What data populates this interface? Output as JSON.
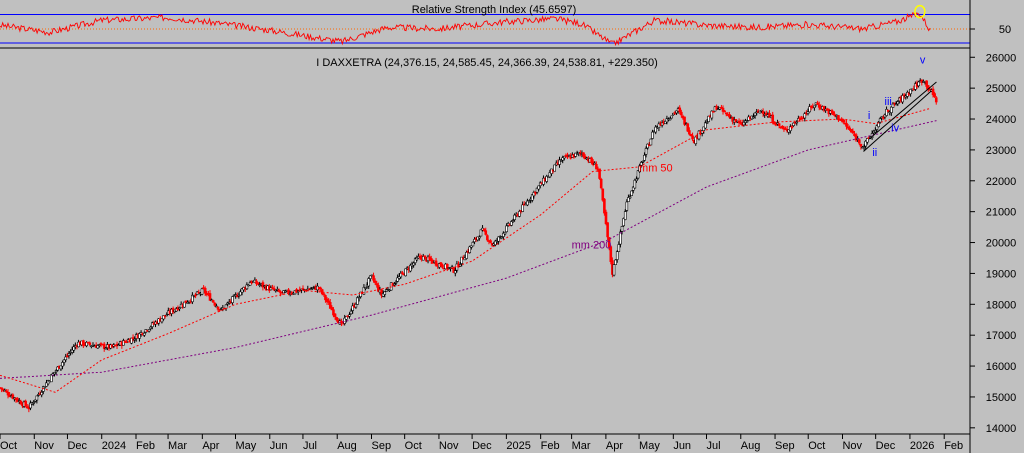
{
  "chart_data": [
    {
      "type": "line",
      "title": "Relative Strength Index (45.6597)",
      "y_ticks": [
        50
      ],
      "reference_lines": [
        30,
        50,
        70
      ],
      "ylim": [
        20,
        80
      ],
      "series": [
        {
          "name": "",
          "color": "#ff0000"
        }
      ],
      "x": [
        "2023-10-01",
        "2023-11-15",
        "2024-01-01",
        "2024-03-01",
        "2024-04-15",
        "2024-06-01",
        "2024-08-05",
        "2024-09-15",
        "2024-11-01",
        "2025-01-01",
        "2025-02-15",
        "2025-03-10",
        "2025-04-07",
        "2025-05-15",
        "2025-07-01",
        "2025-08-15",
        "2025-10-01",
        "2025-11-20",
        "2025-12-20",
        "2026-01-10",
        "2026-01-20"
      ],
      "values": [
        55,
        45,
        62,
        66,
        58,
        48,
        32,
        52,
        50,
        60,
        64,
        57,
        28,
        62,
        55,
        52,
        56,
        50,
        60,
        72,
        46
      ],
      "annotations": [
        {
          "type": "circle",
          "x": "2026-01-10",
          "y": 74,
          "color": "#ffff00"
        }
      ]
    },
    {
      "type": "candlestick",
      "title": "I DAXXETRA (24,376.15, 24,585.45, 24,366.39, 24,538.81, +229.350)",
      "xlim": [
        "2023-10-01",
        "2026-02-18"
      ],
      "ylim": [
        13800,
        26300
      ],
      "y_ticks": [
        14000,
        15000,
        16000,
        17000,
        18000,
        19000,
        20000,
        21000,
        22000,
        23000,
        24000,
        25000,
        26000
      ],
      "x_tick_labels": [
        {
          "label": "Oct",
          "date": "2023-10-01"
        },
        {
          "label": "Nov",
          "date": "2023-11-01"
        },
        {
          "label": "Dec",
          "date": "2023-12-01"
        },
        {
          "label": "2024",
          "date": "2024-01-01"
        },
        {
          "label": "Feb",
          "date": "2024-02-01"
        },
        {
          "label": "Mar",
          "date": "2024-03-01"
        },
        {
          "label": "Apr",
          "date": "2024-04-01"
        },
        {
          "label": "May",
          "date": "2024-05-01"
        },
        {
          "label": "Jun",
          "date": "2024-06-01"
        },
        {
          "label": "Jul",
          "date": "2024-07-01"
        },
        {
          "label": "Aug",
          "date": "2024-08-01"
        },
        {
          "label": "Sep",
          "date": "2024-09-01"
        },
        {
          "label": "Oct",
          "date": "2024-10-01"
        },
        {
          "label": "Nov",
          "date": "2024-11-01"
        },
        {
          "label": "Dec",
          "date": "2024-12-01"
        },
        {
          "label": "2025",
          "date": "2025-01-01"
        },
        {
          "label": "Feb",
          "date": "2025-02-01"
        },
        {
          "label": "Mar",
          "date": "2025-03-01"
        },
        {
          "label": "Apr",
          "date": "2025-04-01"
        },
        {
          "label": "May",
          "date": "2025-05-01"
        },
        {
          "label": "Jun",
          "date": "2025-06-01"
        },
        {
          "label": "Jul",
          "date": "2025-07-01"
        },
        {
          "label": "Aug",
          "date": "2025-08-01"
        },
        {
          "label": "Sep",
          "date": "2025-09-01"
        },
        {
          "label": "Oct",
          "date": "2025-10-01"
        },
        {
          "label": "Nov",
          "date": "2025-11-01"
        },
        {
          "label": "Dec",
          "date": "2025-12-01"
        },
        {
          "label": "2026",
          "date": "2026-01-01"
        },
        {
          "label": "Feb",
          "date": "2026-02-01"
        }
      ],
      "price_path": [
        {
          "x": "2023-10-01",
          "y": 15300
        },
        {
          "x": "2023-10-27",
          "y": 14650
        },
        {
          "x": "2023-11-15",
          "y": 15600
        },
        {
          "x": "2023-12-10",
          "y": 16750
        },
        {
          "x": "2024-01-10",
          "y": 16600
        },
        {
          "x": "2024-02-01",
          "y": 16950
        },
        {
          "x": "2024-03-01",
          "y": 17700
        },
        {
          "x": "2024-04-02",
          "y": 18450
        },
        {
          "x": "2024-04-18",
          "y": 17800
        },
        {
          "x": "2024-05-15",
          "y": 18750
        },
        {
          "x": "2024-06-12",
          "y": 18350
        },
        {
          "x": "2024-07-15",
          "y": 18550
        },
        {
          "x": "2024-08-05",
          "y": 17300
        },
        {
          "x": "2024-09-01",
          "y": 18900
        },
        {
          "x": "2024-09-10",
          "y": 18300
        },
        {
          "x": "2024-10-15",
          "y": 19550
        },
        {
          "x": "2024-11-15",
          "y": 19100
        },
        {
          "x": "2024-12-10",
          "y": 20400
        },
        {
          "x": "2024-12-20",
          "y": 19900
        },
        {
          "x": "2025-01-30",
          "y": 21800
        },
        {
          "x": "2025-02-20",
          "y": 22700
        },
        {
          "x": "2025-03-10",
          "y": 22900
        },
        {
          "x": "2025-03-25",
          "y": 22400
        },
        {
          "x": "2025-04-07",
          "y": 19000
        },
        {
          "x": "2025-04-20",
          "y": 21300
        },
        {
          "x": "2025-05-15",
          "y": 23700
        },
        {
          "x": "2025-06-05",
          "y": 24300
        },
        {
          "x": "2025-06-20",
          "y": 23300
        },
        {
          "x": "2025-07-10",
          "y": 24400
        },
        {
          "x": "2025-08-01",
          "y": 23800
        },
        {
          "x": "2025-08-20",
          "y": 24300
        },
        {
          "x": "2025-09-10",
          "y": 23600
        },
        {
          "x": "2025-10-08",
          "y": 24500
        },
        {
          "x": "2025-10-30",
          "y": 24000
        },
        {
          "x": "2025-11-20",
          "y": 23100
        },
        {
          "x": "2025-12-10",
          "y": 24200
        },
        {
          "x": "2026-01-13",
          "y": 25300
        },
        {
          "x": "2026-01-25",
          "y": 24600
        }
      ],
      "series": [
        {
          "name": "mm 50",
          "color": "#ff0000",
          "style": "dashed",
          "points": [
            {
              "x": "2023-10-01",
              "y": 15700
            },
            {
              "x": "2023-11-20",
              "y": 15150
            },
            {
              "x": "2024-01-01",
              "y": 16200
            },
            {
              "x": "2024-03-01",
              "y": 17050
            },
            {
              "x": "2024-05-01",
              "y": 18000
            },
            {
              "x": "2024-07-01",
              "y": 18450
            },
            {
              "x": "2024-08-15",
              "y": 18300
            },
            {
              "x": "2024-10-01",
              "y": 18650
            },
            {
              "x": "2024-12-01",
              "y": 19400
            },
            {
              "x": "2025-02-01",
              "y": 20900
            },
            {
              "x": "2025-03-20",
              "y": 22300
            },
            {
              "x": "2025-05-01",
              "y": 22450
            },
            {
              "x": "2025-07-01",
              "y": 23650
            },
            {
              "x": "2025-09-01",
              "y": 23900
            },
            {
              "x": "2025-11-01",
              "y": 24000
            },
            {
              "x": "2025-12-01",
              "y": 23850
            },
            {
              "x": "2026-01-20",
              "y": 24350
            }
          ]
        },
        {
          "name": "mm 200",
          "color": "#800080",
          "style": "dashed",
          "points": [
            {
              "x": "2023-10-01",
              "y": 15600
            },
            {
              "x": "2024-01-01",
              "y": 15800
            },
            {
              "x": "2024-05-01",
              "y": 16600
            },
            {
              "x": "2024-09-01",
              "y": 17650
            },
            {
              "x": "2025-01-01",
              "y": 18850
            },
            {
              "x": "2025-04-01",
              "y": 20050
            },
            {
              "x": "2025-07-01",
              "y": 21800
            },
            {
              "x": "2025-10-01",
              "y": 23000
            },
            {
              "x": "2026-01-25",
              "y": 23950
            }
          ]
        }
      ],
      "trendlines": [
        {
          "from": {
            "x": "2025-11-20",
            "y": 22950
          },
          "to": {
            "x": "2026-01-20",
            "y": 24900
          }
        },
        {
          "from": {
            "x": "2025-11-25",
            "y": 23350
          },
          "to": {
            "x": "2026-01-25",
            "y": 25200
          }
        }
      ],
      "annotations": [
        {
          "text": "mm 50",
          "x": "2025-05-01",
          "y": 22300,
          "color": "#ff0000"
        },
        {
          "text": "mm 200",
          "x": "2025-03-01",
          "y": 19800,
          "color": "#800080"
        },
        {
          "text": "i",
          "x": "2025-11-24",
          "y": 24000,
          "color": "#0000ff"
        },
        {
          "text": "ii",
          "x": "2025-11-28",
          "y": 22800,
          "color": "#0000ff"
        },
        {
          "text": "iii",
          "x": "2025-12-09",
          "y": 24450,
          "color": "#0000ff"
        },
        {
          "text": "iv",
          "x": "2025-12-15",
          "y": 23600,
          "color": "#0000ff"
        },
        {
          "text": "v",
          "x": "2026-01-10",
          "y": 25800,
          "color": "#0000ff"
        }
      ]
    }
  ]
}
